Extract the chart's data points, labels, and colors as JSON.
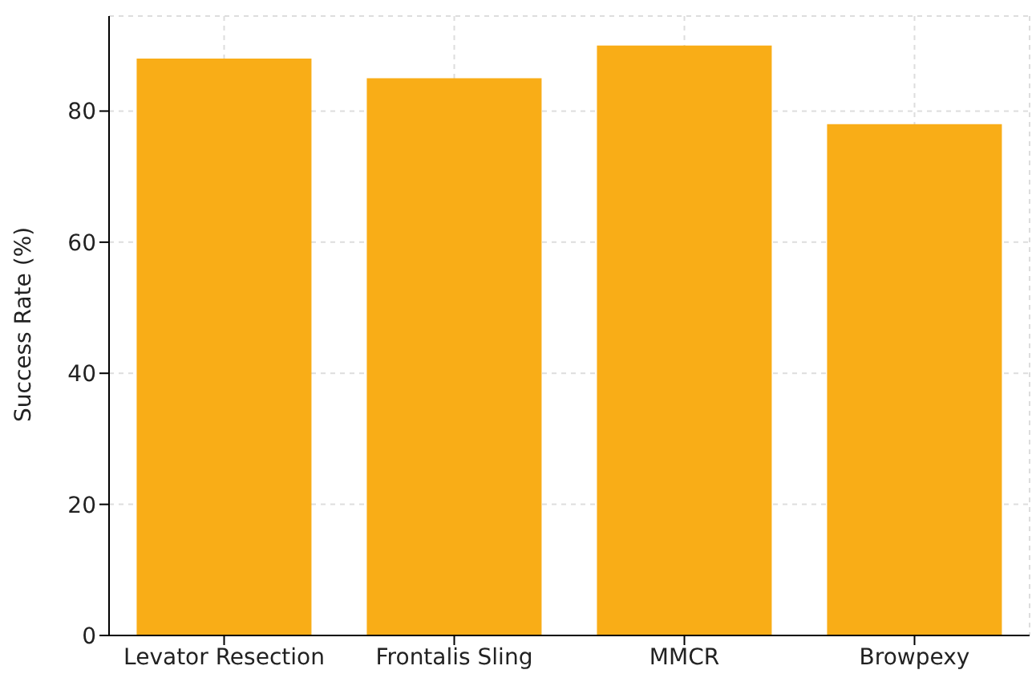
{
  "chart_data": {
    "type": "bar",
    "ylabel": "Success Rate (%)",
    "categories": [
      "Levator Resection",
      "Frontalis Sling",
      "MMCR",
      "Browpexy"
    ],
    "values": [
      88,
      85,
      90,
      78
    ],
    "color": "#f9ad17",
    "ylim": [
      0,
      94.5
    ],
    "yticks": [
      0,
      20,
      40,
      60,
      80
    ],
    "grid": true
  }
}
